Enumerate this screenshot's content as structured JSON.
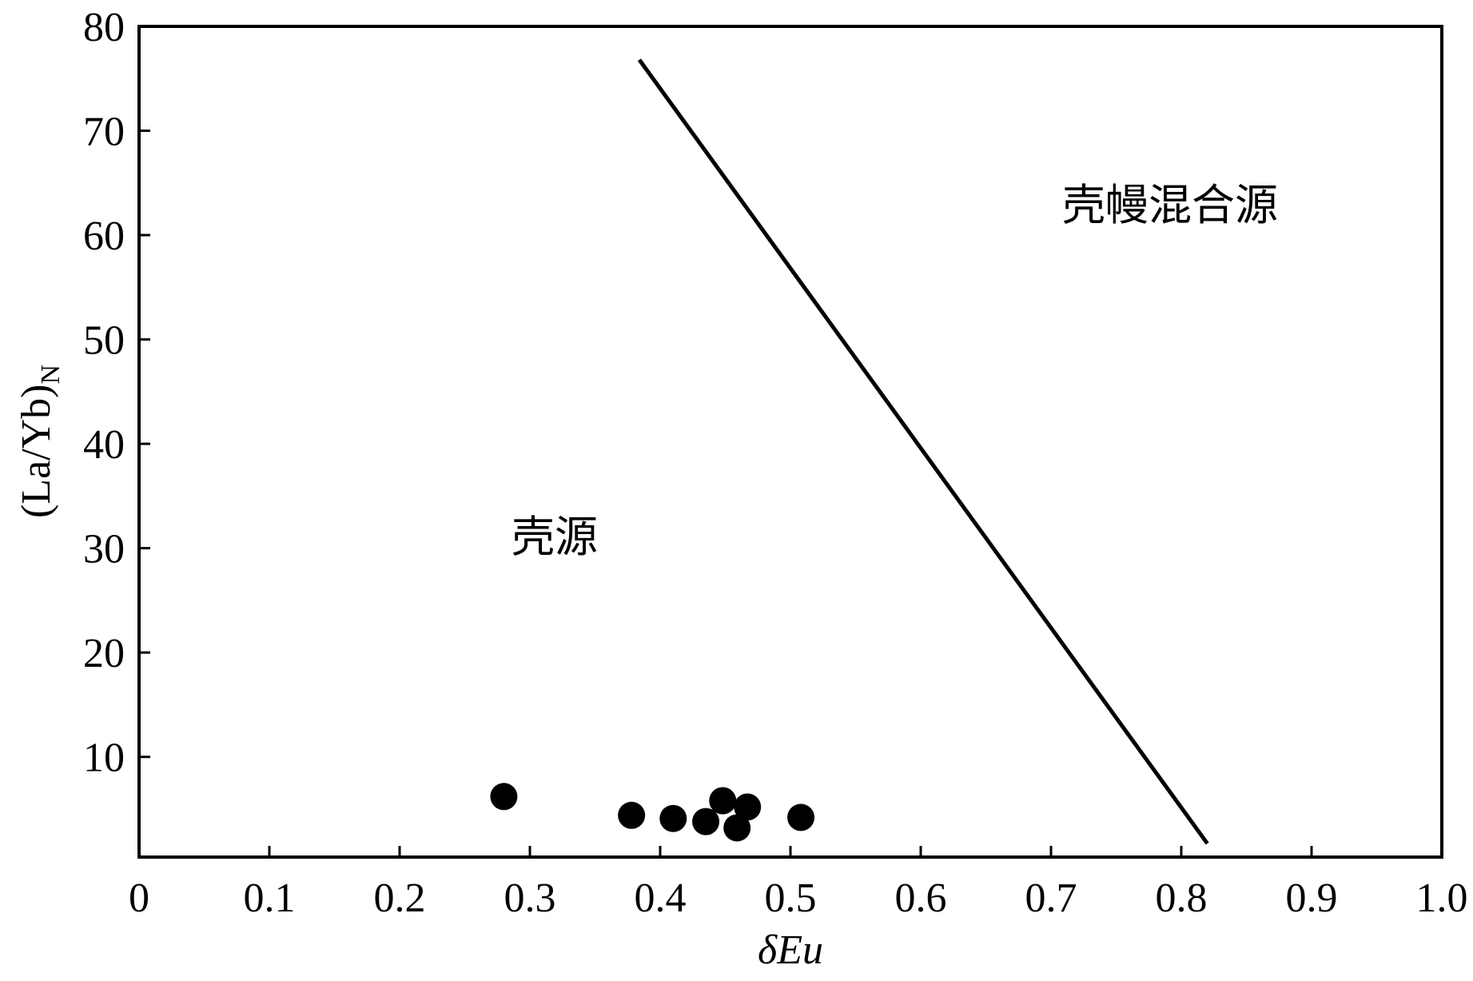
{
  "chart_data": {
    "type": "scatter",
    "x_label": "δEu",
    "y_label": "(La/Yb)",
    "y_label_subscript": "N",
    "x": [
      0.28,
      0.378,
      0.41,
      0.435,
      0.448,
      0.467,
      0.459,
      0.508
    ],
    "y": [
      6.2,
      4.4,
      4.1,
      3.8,
      5.8,
      5.2,
      3.2,
      4.2
    ],
    "color": "#000000",
    "boundary": {
      "x": [
        0.384,
        0.82
      ],
      "y": [
        76.8,
        1.7
      ],
      "color": "#000000"
    },
    "annotations": [
      "壳幔混合源",
      "壳源"
    ],
    "xlim": [
      0,
      1
    ],
    "ylim": [
      0.4,
      80
    ],
    "xticks": [
      0,
      0.1,
      0.2,
      0.3,
      0.4,
      0.5,
      0.6,
      0.7,
      0.8,
      0.9,
      {
        "value": 1,
        "label": "1.0"
      }
    ],
    "yticks": [
      10,
      20,
      30,
      40,
      50,
      60,
      70,
      80
    ]
  }
}
